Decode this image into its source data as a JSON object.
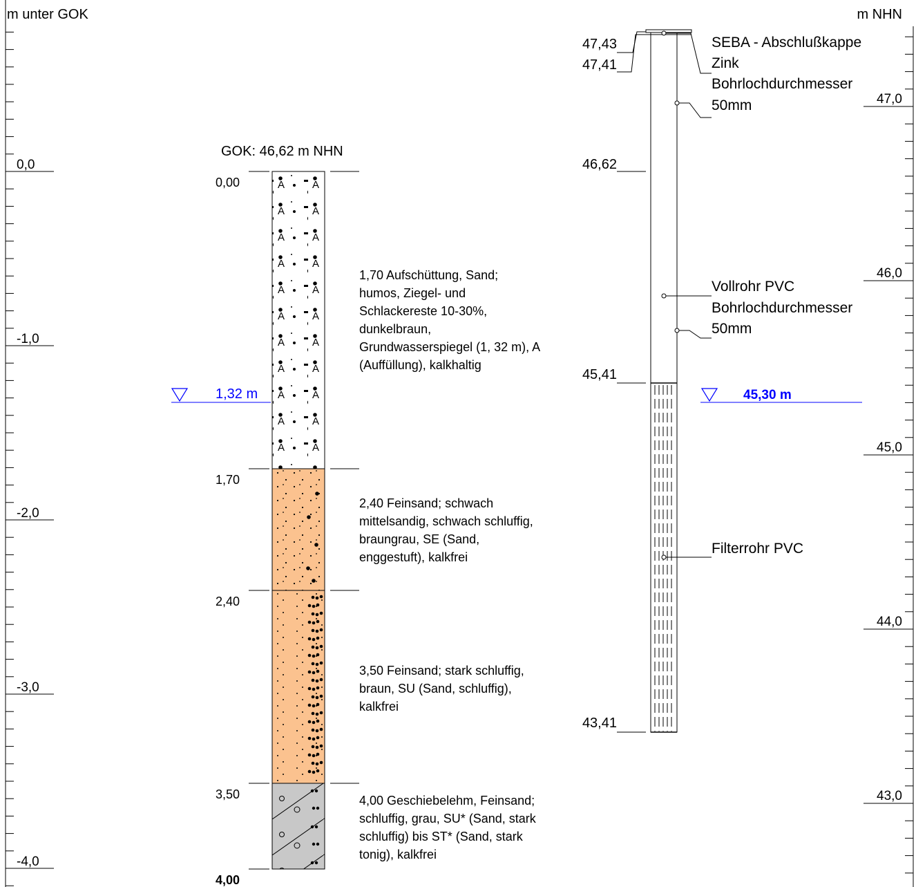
{
  "left_axis": {
    "title": "m unter GOK",
    "labels": [
      "0,0",
      "-1,0",
      "-2,0",
      "-3,0",
      "-4,0"
    ]
  },
  "right_axis": {
    "title": "m NHN",
    "labels": [
      "47,0",
      "46,0",
      "45,0",
      "44,0",
      "43,0"
    ]
  },
  "gok_label": "GOK: 46,62 m NHN",
  "depth_marks": [
    "0,00",
    "1,70",
    "2,40",
    "3,50",
    "4,00"
  ],
  "layers": [
    {
      "top": 0.0,
      "bottom": 1.7,
      "fill": "#ffffff",
      "pattern": "fill-symbols",
      "description": [
        "1,70  Aufschüttung, Sand;",
        "humos, Ziegel- und",
        "Schlackereste 10-30%,",
        "dunkelbraun,",
        "Grundwasserspiegel (1, 32 m), A",
        "(Auffüllung), kalkhaltig"
      ]
    },
    {
      "top": 1.7,
      "bottom": 2.4,
      "fill": "#fbc28f",
      "pattern": "fine-sand",
      "description": [
        "2,40  Feinsand; schwach",
        "mittelsandig, schwach schluffig,",
        "braungrau, SE (Sand,",
        "enggestuft), kalkfrei"
      ]
    },
    {
      "top": 2.4,
      "bottom": 3.5,
      "fill": "#fbc28f",
      "pattern": "silty-sand",
      "description": [
        "3,50  Feinsand; stark schluffig,",
        "braun, SU (Sand, schluffig),",
        "kalkfrei"
      ]
    },
    {
      "top": 3.5,
      "bottom": 4.0,
      "fill": "#c8c8c8",
      "pattern": "till",
      "description": [
        "4,00  Geschiebelehm, Feinsand;",
        "schluffig, grau, SU* (Sand, stark",
        "schluffig) bis ST* (Sand, stark",
        "tonig), kalkfrei"
      ]
    }
  ],
  "groundwater_left": {
    "depth": 1.32,
    "label": "1,32 m"
  },
  "groundwater_right": {
    "label": "45,30 m"
  },
  "colors": {
    "water": "#0000ff",
    "line": "#000000",
    "sand": "#fbc28f",
    "till": "#c8c8c8"
  },
  "well": {
    "elevation_labels": [
      "47,43",
      "47,41",
      "46,62",
      "45,41",
      "43,41"
    ],
    "annotations": [
      {
        "id": "cap",
        "lines": [
          "SEBA - Abschlußkappe",
          "Zink"
        ]
      },
      {
        "id": "borehole-top",
        "lines": [
          "Bohrlochdurchmesser",
          "50mm"
        ]
      },
      {
        "id": "casing",
        "lines": [
          "Vollrohr PVC"
        ]
      },
      {
        "id": "borehole-mid",
        "lines": [
          "Bohrlochdurchmesser",
          "50mm"
        ]
      },
      {
        "id": "filter",
        "lines": [
          "Filterrohr PVC"
        ]
      }
    ]
  }
}
